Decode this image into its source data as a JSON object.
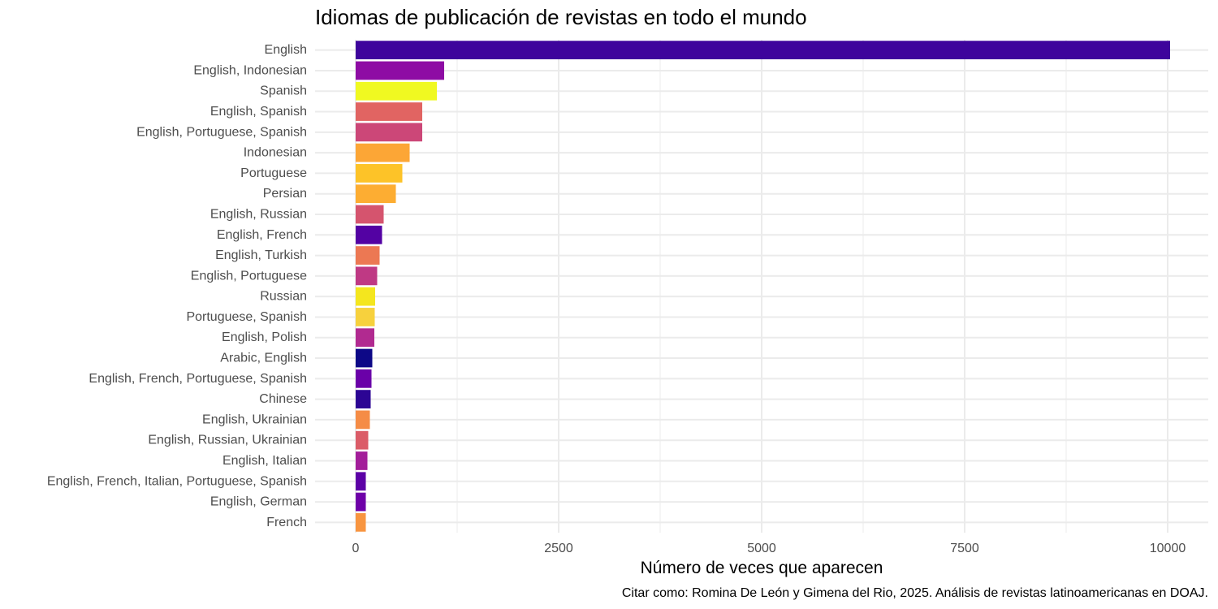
{
  "chart_data": {
    "type": "bar",
    "orientation": "horizontal",
    "title": "Idiomas de publicación de revistas en todo el mundo",
    "xlabel": "Número de veces que aparecen",
    "ylabel": "",
    "caption": "Citar como: Romina De León y Gimena del Rio, 2025. Análisis de revistas latinoamericanas en DOAJ.",
    "xlim": [
      -500,
      10500
    ],
    "x_ticks": [
      0,
      2500,
      5000,
      7500,
      10000
    ],
    "x_tick_labels": [
      "0",
      "2500",
      "5000",
      "7500",
      "10000"
    ],
    "grid": true,
    "legend": "none",
    "categories": [
      "English",
      "English, Indonesian",
      "Spanish",
      "English, Spanish",
      "English, Portuguese, Spanish",
      "Indonesian",
      "Portuguese",
      "Persian",
      "English, Russian",
      "English, French",
      "English, Turkish",
      "English, Portuguese",
      "Russian",
      "Portuguese, Spanish",
      "English, Polish",
      "Arabic, English",
      "English, French, Portuguese, Spanish",
      "Chinese",
      "English, Ukrainian",
      "English, Russian, Ukrainian",
      "English, Italian",
      "English, French, Italian, Portuguese, Spanish",
      "English, German",
      "French"
    ],
    "values": [
      10030,
      1090,
      1000,
      820,
      820,
      665,
      575,
      495,
      345,
      325,
      295,
      265,
      240,
      235,
      230,
      205,
      195,
      185,
      175,
      155,
      145,
      125,
      125,
      125
    ],
    "colors": [
      "#3e049c",
      "#8e0ca4",
      "#f0f921",
      "#e16462",
      "#cc4778",
      "#fca636",
      "#fdc328",
      "#fdad32",
      "#d5546e",
      "#5302a3",
      "#ec7853",
      "#bf3984",
      "#f4e61e",
      "#f7d13d",
      "#b12a90",
      "#0d0887",
      "#6a00a8",
      "#2c0594",
      "#f58c46",
      "#db5c68",
      "#a31e9a",
      "#5c01a6",
      "#6e00a8",
      "#f89540"
    ]
  }
}
